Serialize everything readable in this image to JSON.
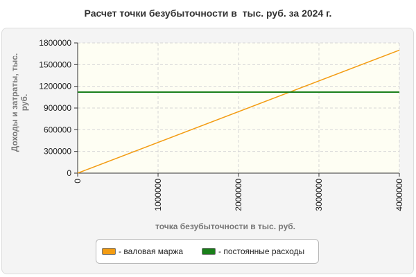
{
  "chart_data": {
    "type": "line",
    "title": "Расчет точки безубыточности в  тыс. руб. за 2024 г.",
    "xlabel": "точка безубыточности в тыс. руб.",
    "ylabel": "Доходы и затраты,  тыс. руб.",
    "xlim": [
      0,
      4000000
    ],
    "ylim": [
      0,
      1800000
    ],
    "xticks": [
      "0",
      "1000000",
      "2000000",
      "3000000",
      "4000000"
    ],
    "yticks": [
      "0",
      "300000",
      "600000",
      "900000",
      "1200000",
      "1500000",
      "1800000"
    ],
    "grid": true,
    "legend_position": "bottom",
    "series": [
      {
        "name": "- валовая маржа",
        "color": "#f39c12",
        "x": [
          0,
          4000000
        ],
        "y": [
          0,
          1700000
        ]
      },
      {
        "name": "- постоянные расходы",
        "color": "#1a7f1a",
        "x": [
          0,
          4000000
        ],
        "y": [
          1120000,
          1120000
        ]
      }
    ]
  }
}
